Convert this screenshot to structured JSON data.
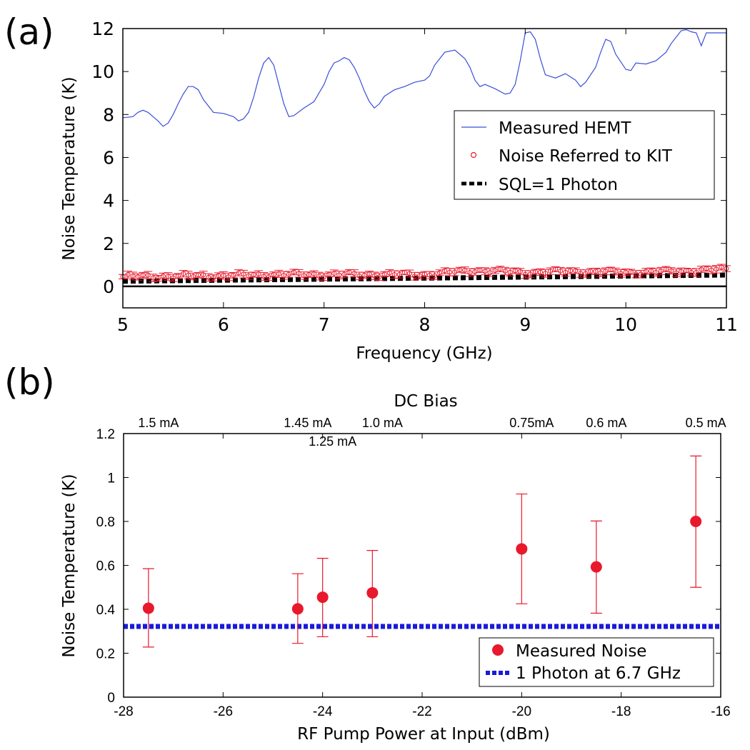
{
  "chart_data": [
    {
      "panel": "(a)",
      "type": "line",
      "title": "",
      "xlabel": "Frequency (GHz)",
      "ylabel": "Noise Temperature (K)",
      "xlim": [
        5,
        11
      ],
      "ylim": [
        -1,
        12
      ],
      "xticks": [
        5,
        6,
        7,
        8,
        9,
        10,
        11
      ],
      "yticks": [
        0,
        2,
        4,
        6,
        8,
        10,
        12
      ],
      "grid": false,
      "legend_position": "center-right",
      "series": [
        {
          "name": "Measured HEMT",
          "style": "line",
          "color": "#3b4fd8",
          "x": [
            5.0,
            5.1,
            5.15,
            5.2,
            5.25,
            5.3,
            5.35,
            5.4,
            5.45,
            5.5,
            5.55,
            5.6,
            5.65,
            5.7,
            5.75,
            5.8,
            5.9,
            6.0,
            6.1,
            6.15,
            6.2,
            6.25,
            6.3,
            6.35,
            6.4,
            6.45,
            6.5,
            6.55,
            6.6,
            6.65,
            6.7,
            6.8,
            6.9,
            7.0,
            7.05,
            7.1,
            7.15,
            7.2,
            7.25,
            7.3,
            7.35,
            7.4,
            7.45,
            7.5,
            7.55,
            7.6,
            7.7,
            7.8,
            7.9,
            8.0,
            8.05,
            8.1,
            8.2,
            8.3,
            8.4,
            8.45,
            8.5,
            8.55,
            8.6,
            8.7,
            8.8,
            8.85,
            8.9,
            8.95,
            9.0,
            9.05,
            9.1,
            9.15,
            9.2,
            9.3,
            9.4,
            9.5,
            9.55,
            9.6,
            9.7,
            9.75,
            9.8,
            9.85,
            9.9,
            10.0,
            10.05,
            10.1,
            10.2,
            10.3,
            10.4,
            10.45,
            10.5,
            10.55,
            10.6,
            10.65,
            10.7,
            10.75,
            10.8,
            10.9,
            11.0
          ],
          "y": [
            7.85,
            7.9,
            8.1,
            8.2,
            8.1,
            7.9,
            7.7,
            7.45,
            7.6,
            8.0,
            8.5,
            8.95,
            9.3,
            9.3,
            9.15,
            8.7,
            8.1,
            8.05,
            7.9,
            7.7,
            7.8,
            8.1,
            8.8,
            9.7,
            10.4,
            10.65,
            10.3,
            9.4,
            8.5,
            7.9,
            7.95,
            8.3,
            8.6,
            9.4,
            10.0,
            10.4,
            10.5,
            10.65,
            10.55,
            10.2,
            9.7,
            9.1,
            8.6,
            8.3,
            8.5,
            8.85,
            9.15,
            9.3,
            9.5,
            9.6,
            9.8,
            10.3,
            10.9,
            11.0,
            10.6,
            10.2,
            9.6,
            9.3,
            9.4,
            9.2,
            8.95,
            9.0,
            9.4,
            10.5,
            11.8,
            11.85,
            11.5,
            10.6,
            9.85,
            9.7,
            9.9,
            9.6,
            9.3,
            9.5,
            10.2,
            10.9,
            11.5,
            11.4,
            10.8,
            10.1,
            10.05,
            10.4,
            10.35,
            10.5,
            10.9,
            11.3,
            11.6,
            11.9,
            11.95,
            11.85,
            11.8,
            11.2,
            11.8,
            11.8,
            11.8
          ]
        },
        {
          "name": "Noise Referred to KIT",
          "style": "markers-with-errorbars",
          "color": "#e8192c",
          "marker": "open-circle",
          "x_range": [
            5.0,
            11.0
          ],
          "x_step": 0.05,
          "y_trend": [
            [
              5.0,
              0.45
            ],
            [
              6.0,
              0.5
            ],
            [
              6.5,
              0.55
            ],
            [
              7.0,
              0.55
            ],
            [
              7.5,
              0.55
            ],
            [
              8.0,
              0.55
            ],
            [
              8.5,
              0.75
            ],
            [
              9.0,
              0.65
            ],
            [
              9.5,
              0.7
            ],
            [
              10.0,
              0.65
            ],
            [
              10.5,
              0.7
            ],
            [
              11.0,
              0.8
            ]
          ],
          "error_halfwidth_approx": 0.15
        },
        {
          "name": "SQL=1 Photon",
          "style": "dashed",
          "color": "#000000",
          "x": [
            5,
            11
          ],
          "y": [
            0.24,
            0.53
          ]
        },
        {
          "name": "zero line",
          "style": "solid",
          "color": "#000000",
          "x": [
            5,
            11
          ],
          "y": [
            0,
            0
          ]
        }
      ],
      "legend": [
        "Measured HEMT",
        "Noise Referred to KIT",
        "SQL=1 Photon"
      ]
    },
    {
      "panel": "(b)",
      "type": "scatter",
      "title": "",
      "top_axis_title": "DC Bias",
      "xlabel": "RF Pump Power at Input (dBm)",
      "ylabel": "Noise Temperature (K)",
      "xlim": [
        -28,
        -16
      ],
      "ylim": [
        0,
        1.2
      ],
      "xticks": [
        -28,
        -26,
        -24,
        -22,
        -20,
        -18,
        -16
      ],
      "yticks": [
        0,
        0.2,
        0.4,
        0.6,
        0.8,
        1,
        1.2
      ],
      "grid": false,
      "legend_position": "bottom-right",
      "series": [
        {
          "name": "Measured Noise",
          "color": "#e8192c",
          "x": [
            -27.5,
            -24.5,
            -24.0,
            -23.0,
            -20.0,
            -18.5,
            -16.5
          ],
          "y": [
            0.405,
            0.402,
            0.455,
            0.475,
            0.675,
            0.593,
            0.8
          ],
          "yerr_low": [
            0.228,
            0.245,
            0.275,
            0.275,
            0.425,
            0.382,
            0.5
          ],
          "yerr_high": [
            0.585,
            0.562,
            0.632,
            0.668,
            0.925,
            0.802,
            1.098
          ]
        },
        {
          "name": "1 Photon at 6.7 GHz",
          "style": "dashed",
          "color": "#1a1adc",
          "x": [
            -28,
            -16
          ],
          "y": [
            0.322,
            0.322
          ]
        }
      ],
      "bias_labels": [
        {
          "x": -27.5,
          "text": "1.5 mA",
          "row": 1
        },
        {
          "x": -24.5,
          "text": "1.45 mA",
          "row": 1
        },
        {
          "x": -24.0,
          "text": "1.25 mA",
          "row": 2
        },
        {
          "x": -23.0,
          "text": "1.0 mA",
          "row": 1
        },
        {
          "x": -20.0,
          "text": "0.75mA",
          "row": 1
        },
        {
          "x": -18.5,
          "text": "0.6 mA",
          "row": 1
        },
        {
          "x": -16.5,
          "text": "0.5 mA",
          "row": 1
        }
      ],
      "legend": [
        "Measured Noise",
        "1 Photon at 6.7 GHz"
      ]
    }
  ]
}
